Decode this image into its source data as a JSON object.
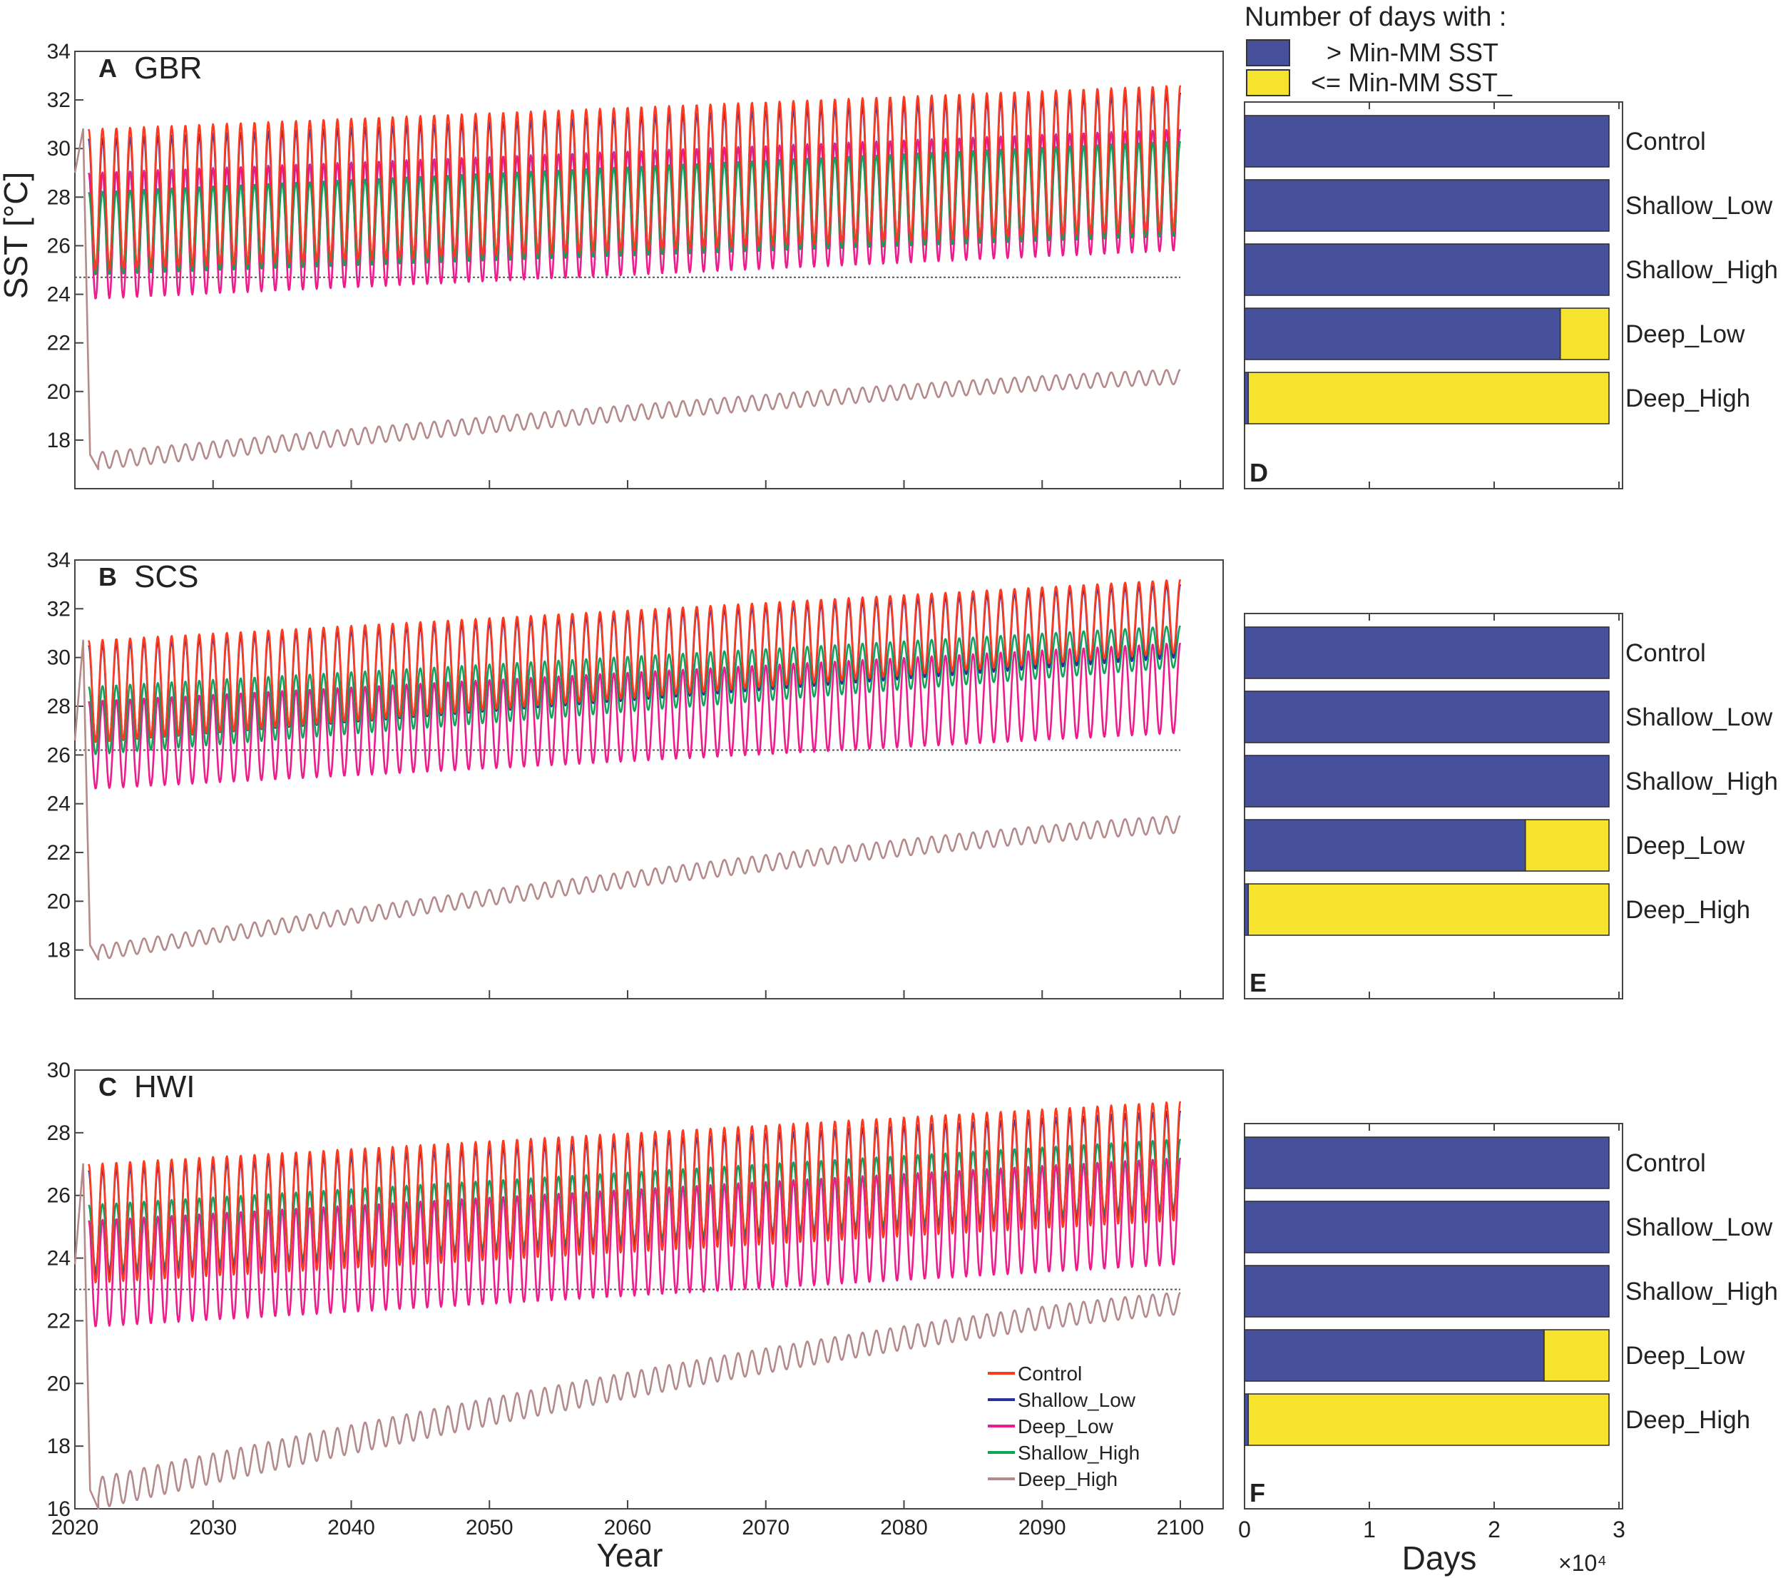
{
  "figure": {
    "legend_top": {
      "title": "Number of days with :",
      "items": [
        {
          "label": "> Min-MM SST",
          "color": "#47509a"
        },
        {
          "label": "<= Min-MM SST_",
          "color": "#f6e32e"
        }
      ]
    },
    "bar_x_label": "Days",
    "bar_x_multiplier": "×10⁴",
    "sst_x_label": "Year",
    "sst_y_label": "SST [°C]"
  },
  "colors": {
    "Control": "#ff3b1f",
    "Shallow_Low": "#2b2ea0",
    "Deep_Low": "#ee1b8c",
    "Shallow_High": "#12a35a",
    "Deep_High": "#b48a8a",
    "bar_above": "#47509a",
    "bar_below": "#f6e32e"
  },
  "chart_data": [
    {
      "panel": "A",
      "title": "GBR",
      "type": "line",
      "xlabel": "",
      "ylabel": "SST [°C]",
      "xlim": [
        2020,
        2100
      ],
      "ylim": [
        16,
        34
      ],
      "yticks": [
        18,
        20,
        22,
        24,
        26,
        28,
        30,
        32,
        34
      ],
      "xticks": [
        2020,
        2030,
        2040,
        2050,
        2060,
        2070,
        2080,
        2090,
        2100
      ],
      "threshold": 24.7,
      "series": [
        {
          "name": "Control",
          "min": [
            25.0,
            26.6
          ],
          "max": [
            30.8,
            32.6
          ]
        },
        {
          "name": "Shallow_Low",
          "min": [
            25.0,
            26.6
          ],
          "max": [
            30.4,
            32.3
          ]
        },
        {
          "name": "Deep_Low",
          "min": [
            23.8,
            25.8
          ],
          "max": [
            29.0,
            30.8
          ]
        },
        {
          "name": "Shallow_High",
          "min": [
            24.8,
            26.4
          ],
          "max": [
            28.2,
            30.3
          ]
        },
        {
          "name": "Deep_High",
          "min": [
            16.8,
            20.3
          ],
          "max": [
            17.5,
            20.9
          ],
          "start": 29.0,
          "spike": 30.8
        }
      ]
    },
    {
      "panel": "B",
      "title": "SCS",
      "type": "line",
      "xlabel": "",
      "ylabel": "",
      "xlim": [
        2020,
        2100
      ],
      "ylim": [
        16,
        34
      ],
      "yticks": [
        18,
        20,
        22,
        24,
        26,
        28,
        30,
        32,
        34
      ],
      "xticks": [
        2020,
        2030,
        2040,
        2050,
        2060,
        2070,
        2080,
        2090,
        2100
      ],
      "threshold": 26.2,
      "series": [
        {
          "name": "Control",
          "min": [
            26.5,
            30.2
          ],
          "max": [
            30.7,
            33.2
          ]
        },
        {
          "name": "Shallow_Low",
          "min": [
            26.5,
            30.0
          ],
          "max": [
            30.5,
            33.0
          ]
        },
        {
          "name": "Deep_Low",
          "min": [
            24.6,
            26.9
          ],
          "max": [
            28.2,
            30.6
          ]
        },
        {
          "name": "Shallow_High",
          "min": [
            26.0,
            29.6
          ],
          "max": [
            28.8,
            31.3
          ]
        },
        {
          "name": "Deep_High",
          "min": [
            17.6,
            22.8
          ],
          "max": [
            18.2,
            23.5
          ],
          "start": 26.6,
          "spike": 30.7
        }
      ]
    },
    {
      "panel": "C",
      "title": "HWI",
      "type": "line",
      "xlabel": "Year",
      "ylabel": "",
      "xlim": [
        2020,
        2100
      ],
      "ylim": [
        16,
        30
      ],
      "yticks": [
        16,
        18,
        20,
        22,
        24,
        26,
        28,
        30
      ],
      "xticks": [
        2020,
        2030,
        2040,
        2050,
        2060,
        2070,
        2080,
        2090,
        2100
      ],
      "threshold": 23.0,
      "series": [
        {
          "name": "Control",
          "min": [
            23.2,
            25.2
          ],
          "max": [
            27.0,
            29.0
          ]
        },
        {
          "name": "Shallow_Low",
          "min": [
            23.4,
            25.4
          ],
          "max": [
            26.8,
            28.7
          ]
        },
        {
          "name": "Deep_Low",
          "min": [
            21.8,
            23.8
          ],
          "max": [
            25.2,
            27.2
          ]
        },
        {
          "name": "Shallow_High",
          "min": [
            23.6,
            25.6
          ],
          "max": [
            25.7,
            27.8
          ]
        },
        {
          "name": "Deep_High",
          "min": [
            16.0,
            22.2
          ],
          "max": [
            17.0,
            22.9
          ],
          "start": 23.8,
          "spike": 27.0
        }
      ],
      "legend": [
        "Control",
        "Shallow_Low",
        "Deep_Low",
        "Shallow_High",
        "Deep_High"
      ]
    },
    {
      "panel": "D",
      "type": "bar",
      "orientation": "horizontal",
      "stacked": true,
      "xlim": [
        0,
        30000
      ],
      "xticks": [],
      "categories": [
        "Control",
        "Shallow_Low",
        "Shallow_High",
        "Deep_Low",
        "Deep_High"
      ],
      "series": [
        {
          "name": "> Min-MM SST",
          "values": [
            29200,
            29200,
            29200,
            25300,
            300
          ]
        },
        {
          "name": "<= Min-MM SST_",
          "values": [
            0,
            0,
            0,
            3900,
            28900
          ]
        }
      ]
    },
    {
      "panel": "E",
      "type": "bar",
      "orientation": "horizontal",
      "stacked": true,
      "xlim": [
        0,
        30000
      ],
      "xticks": [],
      "categories": [
        "Control",
        "Shallow_Low",
        "Shallow_High",
        "Deep_Low",
        "Deep_High"
      ],
      "series": [
        {
          "name": "> Min-MM SST",
          "values": [
            29200,
            29200,
            29200,
            22500,
            300
          ]
        },
        {
          "name": "<= Min-MM SST_",
          "values": [
            0,
            0,
            0,
            6700,
            28900
          ]
        }
      ]
    },
    {
      "panel": "F",
      "type": "bar",
      "orientation": "horizontal",
      "stacked": true,
      "xlim": [
        0,
        30000
      ],
      "xticks": [
        0,
        1,
        2,
        3
      ],
      "xlabel": "Days",
      "categories": [
        "Control",
        "Shallow_Low",
        "Shallow_High",
        "Deep_Low",
        "Deep_High"
      ],
      "series": [
        {
          "name": "> Min-MM SST",
          "values": [
            29200,
            29200,
            29200,
            24000,
            300
          ]
        },
        {
          "name": "<= Min-MM SST_",
          "values": [
            0,
            0,
            0,
            5200,
            28900
          ]
        }
      ]
    }
  ]
}
